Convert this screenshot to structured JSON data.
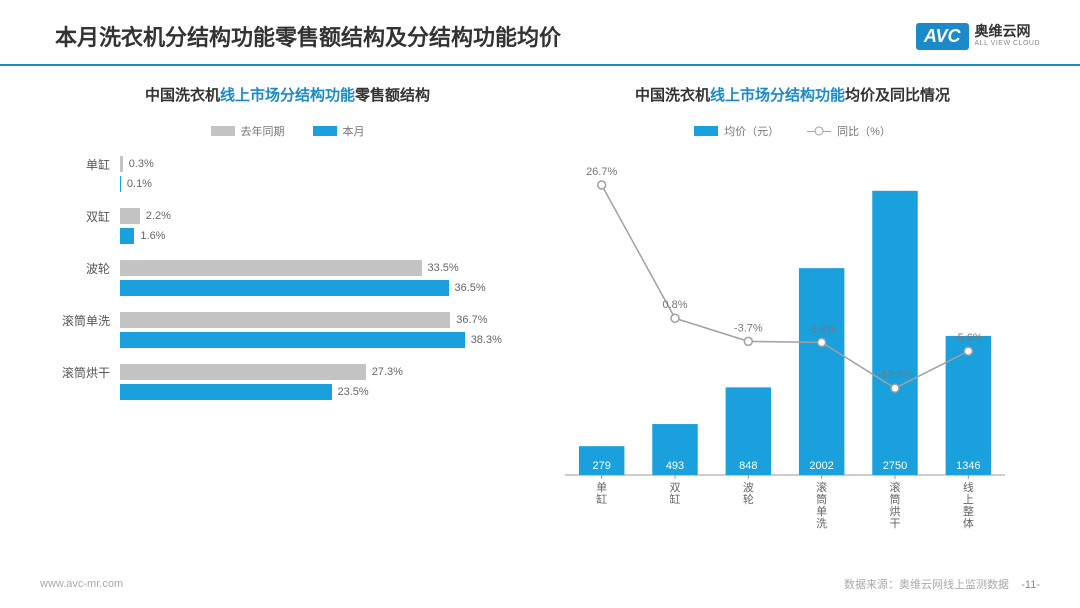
{
  "page": {
    "title_full": "本月洗衣机分结构功能零售额结构及分结构功能均价",
    "logo_cn": "奥维云网",
    "logo_en": "ALL VIEW CLOUD",
    "logo_badge": "AVC",
    "footer_url": "www.avc-mr.com",
    "footer_source": "数据来源：奥维云网线上监测数据",
    "page_number": "-11-"
  },
  "colors": {
    "accent": "#1a8bc8",
    "bar_blue": "#1aa0dc",
    "bar_grey": "#c4c4c4",
    "line_grey": "#a0a0a0",
    "text_dark": "#333333",
    "text_mid": "#666666",
    "background": "#ffffff"
  },
  "left_chart": {
    "title_pre": "中国洗衣机",
    "title_accent": "线上市场分结构功能",
    "title_post": "零售额结构",
    "legend_a": "去年同期",
    "legend_b": "本月",
    "xmax_pct": 45,
    "categories": [
      {
        "name": "单缸",
        "last": 0.3,
        "curr": 0.1,
        "last_label": "0.3%",
        "curr_label": "0.1%"
      },
      {
        "name": "双缸",
        "last": 2.2,
        "curr": 1.6,
        "last_label": "2.2%",
        "curr_label": "1.6%"
      },
      {
        "name": "波轮",
        "last": 33.5,
        "curr": 36.5,
        "last_label": "33.5%",
        "curr_label": "36.5%"
      },
      {
        "name": "滚筒单洗",
        "last": 36.7,
        "curr": 38.3,
        "last_label": "36.7%",
        "curr_label": "38.3%"
      },
      {
        "name": "滚筒烘干",
        "last": 27.3,
        "curr": 23.5,
        "last_label": "27.3%",
        "curr_label": "23.5%"
      }
    ]
  },
  "right_chart": {
    "title_pre": "中国洗衣机",
    "title_accent": "线上市场分结构功能",
    "title_post": "均价及同比情况",
    "legend_bar": "均价（元）",
    "legend_line": "同比（%）",
    "price_ymax": 3000,
    "categories": [
      "单缸",
      "双缸",
      "波轮",
      "滚筒单洗",
      "滚筒烘干",
      "线上整体"
    ],
    "prices": [
      279,
      493,
      848,
      2002,
      2750,
      1346
    ],
    "price_labels": [
      "279",
      "493",
      "848",
      "2002",
      "2750",
      "1346"
    ],
    "yoy": [
      26.7,
      0.8,
      -3.7,
      -3.9,
      -12.8,
      -5.6
    ],
    "yoy_labels": [
      "26.7%",
      "0.8%",
      "-3.7%",
      "-3.9%",
      "-12.8%",
      "-5.6%"
    ],
    "bar_color": "#1aa0dc",
    "line_color": "#a0a0a0",
    "label_fontsize": 11
  }
}
